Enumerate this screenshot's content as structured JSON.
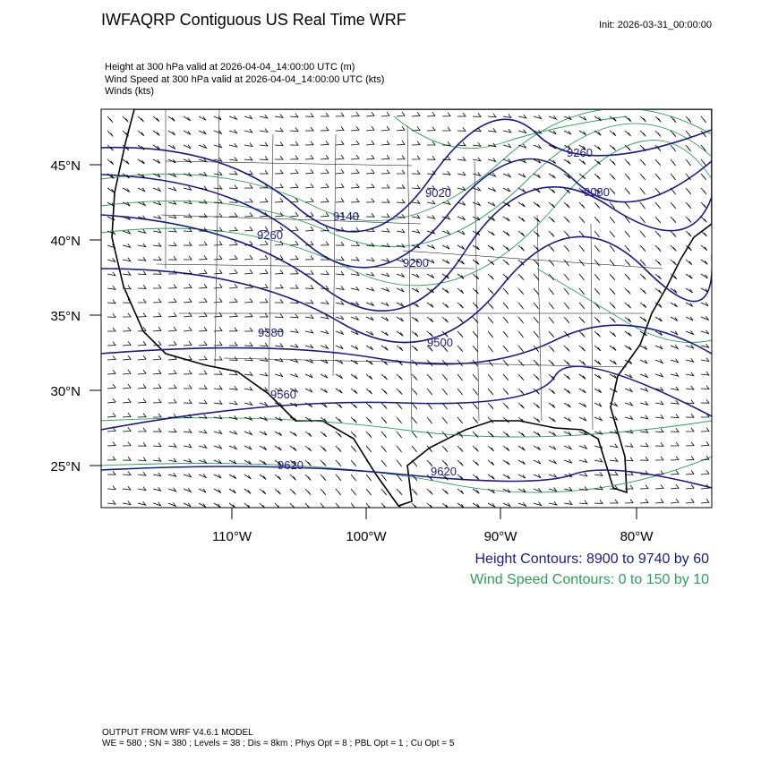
{
  "header": {
    "title": "IWFAQRP Contiguous US Real Time WRF",
    "init": "Init: 2026-03-31_00:00:00"
  },
  "fields": [
    "Height at 300 hPa valid at 2026-04-04_14:00:00 UTC   (m)",
    "Wind Speed at 300 hPa valid at 2026-04-04_14:00:00 UTC   (kts)",
    "Winds   (kts)"
  ],
  "map": {
    "lat_labels": [
      "45°N",
      "40°N",
      "35°N",
      "30°N",
      "25°N"
    ],
    "lon_labels": [
      "110°W",
      "100°W",
      "90°W",
      "80°W"
    ],
    "contour_labels": [
      "9260",
      "9080",
      "9020",
      "9140",
      "9260",
      "9200",
      "9380",
      "9500",
      "9560",
      "9620",
      "9620"
    ]
  },
  "legend": {
    "height": "Height Contours: 8900 to 9740 by 60",
    "wind": "Wind Speed Contours: 0 to 150 by 10"
  },
  "footer": {
    "model": "OUTPUT FROM WRF V4.6.1 MODEL",
    "config": "WE = 580 ; SN = 380 ; Levels = 38 ; Dis = 8km ; Phys Opt = 8 ; PBL Opt = 1 ; Cu Opt = 5"
  }
}
